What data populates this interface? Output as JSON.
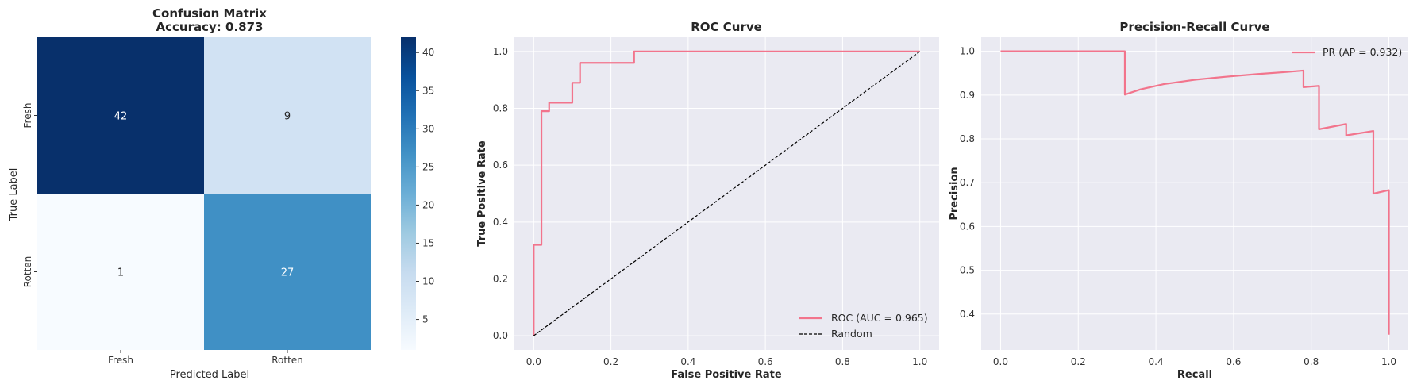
{
  "chart_data": [
    {
      "type": "heatmap",
      "title": "Confusion Matrix",
      "subtitle": "Accuracy: 0.873",
      "xlabel": "Predicted Label",
      "ylabel": "True Label",
      "x_categories": [
        "Fresh",
        "Rotten"
      ],
      "y_categories": [
        "Fresh",
        "Rotten"
      ],
      "values": [
        [
          42,
          9
        ],
        [
          1,
          27
        ]
      ],
      "colormap": "Blues",
      "colorbar_range": [
        1,
        42
      ],
      "colorbar_ticks": [
        "5",
        "10",
        "15",
        "20",
        "25",
        "30",
        "35",
        "40"
      ]
    },
    {
      "type": "line",
      "title": "ROC Curve",
      "xlabel": "False Positive Rate",
      "ylabel": "True Positive Rate",
      "xlim": [
        -0.05,
        1.05
      ],
      "ylim": [
        -0.05,
        1.05
      ],
      "xticks": [
        "0.0",
        "0.2",
        "0.4",
        "0.6",
        "0.8",
        "1.0"
      ],
      "yticks": [
        "0.0",
        "0.2",
        "0.4",
        "0.6",
        "0.8",
        "1.0"
      ],
      "grid": true,
      "legend_position": "bottom-right",
      "series": [
        {
          "name": "ROC (AUC = 0.965)",
          "color": "#f2748c",
          "style": "solid",
          "x": [
            0,
            0,
            0.02,
            0.02,
            0.04,
            0.04,
            0.1,
            0.1,
            0.12,
            0.12,
            0.26,
            0.26,
            1.0
          ],
          "y": [
            0,
            0.32,
            0.32,
            0.79,
            0.79,
            0.82,
            0.82,
            0.89,
            0.89,
            0.96,
            0.96,
            1.0,
            1.0
          ]
        },
        {
          "name": "Random",
          "color": "#000000",
          "style": "dashed",
          "x": [
            0,
            1
          ],
          "y": [
            0,
            1
          ]
        }
      ]
    },
    {
      "type": "line",
      "title": "Precision-Recall Curve",
      "xlabel": "Recall",
      "ylabel": "Precision",
      "xlim": [
        -0.05,
        1.05
      ],
      "ylim": [
        0.318,
        1.032
      ],
      "xticks": [
        "0.0",
        "0.2",
        "0.4",
        "0.6",
        "0.8",
        "1.0"
      ],
      "yticks": [
        "0.4",
        "0.5",
        "0.6",
        "0.7",
        "0.8",
        "0.9",
        "1.0"
      ],
      "grid": true,
      "legend_position": "top-right",
      "series": [
        {
          "name": "PR (AP = 0.932)",
          "color": "#f2748c",
          "style": "solid",
          "x": [
            0,
            0.32,
            0.32,
            0.36,
            0.42,
            0.5,
            0.58,
            0.66,
            0.74,
            0.78,
            0.78,
            0.82,
            0.82,
            0.89,
            0.89,
            0.96,
            0.96,
            1.0,
            1.0
          ],
          "y": [
            1.0,
            1.0,
            0.901,
            0.913,
            0.925,
            0.935,
            0.942,
            0.948,
            0.953,
            0.956,
            0.918,
            0.921,
            0.822,
            0.834,
            0.808,
            0.818,
            0.675,
            0.683,
            0.353
          ]
        }
      ]
    }
  ]
}
